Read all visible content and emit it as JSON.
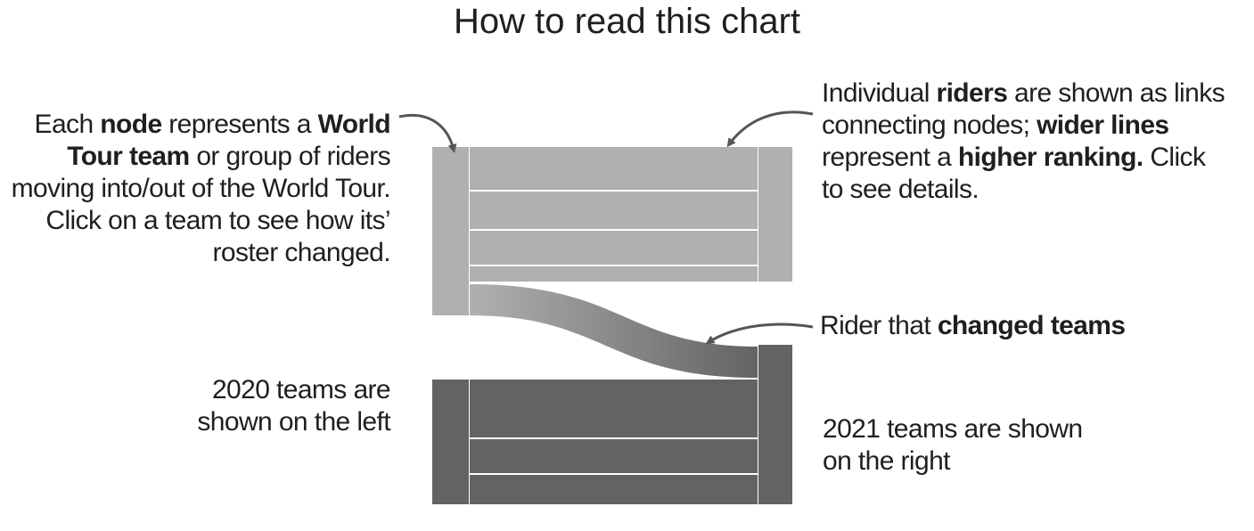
{
  "title": "How to read this chart",
  "colors": {
    "teams_2020": "#b0b0b0",
    "teams_2021": "#636363",
    "divider": "#ffffff",
    "arrow": "#555555"
  },
  "notes": {
    "node": {
      "t1": "Each ",
      "b1": "node",
      "t2": " represents a ",
      "b2": "World Tour team",
      "t3": " or group of riders moving into/out of the World Tour. Click on a team to see how its’ roster changed."
    },
    "riders": {
      "t1": "Individual ",
      "b1": "riders",
      "t2": " are shown as links connecting nodes; ",
      "b2": "wider lines",
      "t3": " represent a ",
      "b3": "higher ranking.",
      "t4": " Click to see details."
    },
    "changed": {
      "t1": "Rider that ",
      "b1": "changed teams"
    },
    "left": {
      "text": "2020 teams are shown on the left"
    },
    "right": {
      "text": "2021 teams are shown on the right"
    }
  },
  "icons": [
    "arrow-to-node-icon",
    "arrow-to-links-icon",
    "arrow-to-changed-link-icon"
  ]
}
